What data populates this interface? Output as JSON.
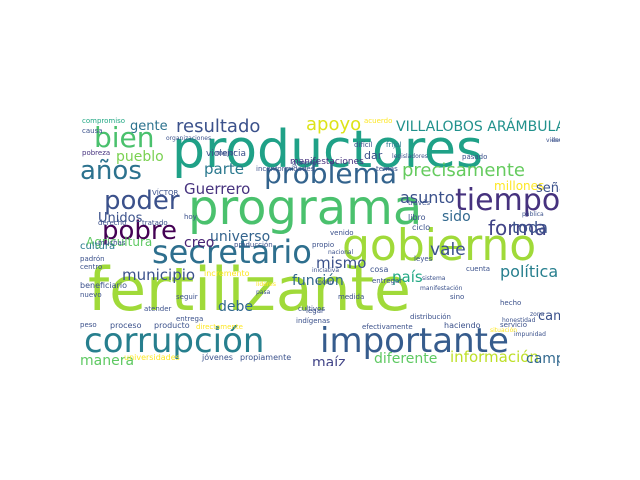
{
  "words": [
    {
      "id": "w1",
      "text": "fertilizante",
      "color": "#a0da39"
    },
    {
      "id": "w2",
      "text": "productores",
      "color": "#1fa187"
    },
    {
      "id": "w3",
      "text": "programa",
      "color": "#4ac16d"
    },
    {
      "id": "w4",
      "text": "gobierno",
      "color": "#a0da39"
    },
    {
      "id": "w5",
      "text": "corrupción",
      "color": "#277f8e"
    },
    {
      "id": "w6",
      "text": "importante",
      "color": "#365c8d"
    },
    {
      "id": "w7",
      "text": "secretario",
      "color": "#2e6f8e"
    },
    {
      "id": "w8",
      "text": "problema",
      "color": "#33638d"
    },
    {
      "id": "w9",
      "text": "tiempo",
      "color": "#46327e"
    },
    {
      "id": "w10",
      "text": "pobre",
      "color": "#440154"
    },
    {
      "id": "w11",
      "text": "poder",
      "color": "#3b518b"
    },
    {
      "id": "w12",
      "text": "años",
      "color": "#2c728e"
    },
    {
      "id": "w13",
      "text": "bien",
      "color": "#4ac16d"
    },
    {
      "id": "w14",
      "text": "precisamente",
      "color": "#65cb5e"
    },
    {
      "id": "w15",
      "text": "resultado",
      "color": "#3b518b"
    },
    {
      "id": "w16",
      "text": "VILLALOBOS ARÁMBULA",
      "color": "#21918c"
    },
    {
      "id": "w17",
      "text": "apoyo",
      "color": "#dde318"
    },
    {
      "id": "w18",
      "text": "forma",
      "color": "#414487"
    },
    {
      "id": "w19",
      "text": "municipio",
      "color": "#3b518b"
    },
    {
      "id": "w20",
      "text": "mismo",
      "color": "#3b518b"
    },
    {
      "id": "w21",
      "text": "universo",
      "color": "#33638d"
    },
    {
      "id": "w22",
      "text": "información",
      "color": "#bddf26"
    },
    {
      "id": "w23",
      "text": "diferente",
      "color": "#5ec962"
    },
    {
      "id": "w24",
      "text": "campesinos",
      "color": "#31688e"
    },
    {
      "id": "w25",
      "text": "política",
      "color": "#277f8e"
    },
    {
      "id": "w26",
      "text": "vale",
      "color": "#3b518b"
    },
    {
      "id": "w27",
      "text": "país",
      "color": "#22a884"
    },
    {
      "id": "w28",
      "text": "asunto",
      "color": "#3b518b"
    },
    {
      "id": "w29",
      "text": "toda",
      "color": "#3b518b"
    },
    {
      "id": "w30",
      "text": "sido",
      "color": "#31688e"
    },
    {
      "id": "w31",
      "text": "Guerrero",
      "color": "#46327e"
    },
    {
      "id": "w32",
      "text": "parte",
      "color": "#2a788e"
    },
    {
      "id": "w33",
      "text": "gente",
      "color": "#2c728e"
    },
    {
      "id": "w34",
      "text": "pueblo",
      "color": "#7ad151"
    },
    {
      "id": "w35",
      "text": "Unidos",
      "color": "#3b518b"
    },
    {
      "id": "w36",
      "text": "creo",
      "color": "#482475"
    },
    {
      "id": "w37",
      "text": "función",
      "color": "#31688e"
    },
    {
      "id": "w38",
      "text": "debe",
      "color": "#31688e"
    },
    {
      "id": "w39",
      "text": "maíz",
      "color": "#414487"
    },
    {
      "id": "w40",
      "text": "manera",
      "color": "#5ec962"
    },
    {
      "id": "w41",
      "text": "millones",
      "color": "#fde725"
    },
    {
      "id": "w42",
      "text": "señalado",
      "color": "#3b518b"
    },
    {
      "id": "w43",
      "text": "cambio",
      "color": "#3b518b"
    },
    {
      "id": "w44",
      "text": "Agricultura",
      "color": "#5ec962"
    },
    {
      "id": "w45",
      "text": "cultura",
      "color": "#2a788e"
    },
    {
      "id": "w46",
      "text": "dar",
      "color": "#3b518b"
    },
    {
      "id": "w47",
      "text": "violencia",
      "color": "#3b518b"
    },
    {
      "id": "w48",
      "text": "inconformidades",
      "color": "#3b518b"
    },
    {
      "id": "w49",
      "text": "manifestaciones",
      "color": "#46327e"
    },
    {
      "id": "w50",
      "text": "general",
      "color": "#3b528b"
    },
    {
      "id": "w51",
      "text": "temas",
      "color": "#3b518b"
    },
    {
      "id": "w52",
      "text": "legisladores",
      "color": "#3b518b"
    },
    {
      "id": "w53",
      "text": "frijol",
      "color": "#2a788e"
    },
    {
      "id": "w54",
      "text": "acuerdo",
      "color": "#fde725"
    },
    {
      "id": "w55",
      "text": "difícil",
      "color": "#3b518b"
    },
    {
      "id": "w56",
      "text": "compromiso",
      "color": "#22a884"
    },
    {
      "id": "w57",
      "text": "causa",
      "color": "#3b518b"
    },
    {
      "id": "w58",
      "text": "pobreza",
      "color": "#46327e"
    },
    {
      "id": "w59",
      "text": "mejor",
      "color": "#3b518b"
    },
    {
      "id": "w60",
      "text": "pasado",
      "color": "#3b518b"
    },
    {
      "id": "w61",
      "text": "vienen",
      "color": "#3b518b"
    },
    {
      "id": "w62",
      "text": "llevar",
      "color": "#3b518b"
    },
    {
      "id": "w63",
      "text": "VÍCTOR",
      "color": "#3b518b"
    },
    {
      "id": "w64",
      "text": "derecho",
      "color": "#3b518b"
    },
    {
      "id": "w65",
      "text": "tratado",
      "color": "#3b518b"
    },
    {
      "id": "w66",
      "text": "hoy",
      "color": "#3b518b"
    },
    {
      "id": "w67",
      "text": "muchas",
      "color": "#3b518b"
    },
    {
      "id": "w68",
      "text": "producción",
      "color": "#3b518b"
    },
    {
      "id": "w69",
      "text": "propio",
      "color": "#3b518b"
    },
    {
      "id": "w70",
      "text": "venido",
      "color": "#3b518b"
    },
    {
      "id": "w71",
      "text": "ciclo",
      "color": "#3b518b"
    },
    {
      "id": "w72",
      "text": "través",
      "color": "#3b518b"
    },
    {
      "id": "w73",
      "text": "libro",
      "color": "#3b518b"
    },
    {
      "id": "w74",
      "text": "pública",
      "color": "#3b518b"
    },
    {
      "id": "w75",
      "text": "padrón",
      "color": "#3b518b"
    },
    {
      "id": "w76",
      "text": "centro",
      "color": "#3b518b"
    },
    {
      "id": "w77",
      "text": "beneficiario",
      "color": "#3b518b"
    },
    {
      "id": "w78",
      "text": "incremento",
      "color": "#fde725"
    },
    {
      "id": "w79",
      "text": "cosa",
      "color": "#3b518b"
    },
    {
      "id": "w80",
      "text": "cuenta",
      "color": "#3b518b"
    },
    {
      "id": "w81",
      "text": "seguir",
      "color": "#3b518b"
    },
    {
      "id": "w82",
      "text": "líderes",
      "color": "#fde725"
    },
    {
      "id": "w83",
      "text": "entregar",
      "color": "#3b518b"
    },
    {
      "id": "w84",
      "text": "medida",
      "color": "#3b518b"
    },
    {
      "id": "w85",
      "text": "sino",
      "color": "#3b518b"
    },
    {
      "id": "w86",
      "text": "hecho",
      "color": "#3b518b"
    },
    {
      "id": "w87",
      "text": "nuevo",
      "color": "#3b518b"
    },
    {
      "id": "w88",
      "text": "atender",
      "color": "#3b518b"
    },
    {
      "id": "w89",
      "text": "entrega",
      "color": "#3b518b"
    },
    {
      "id": "w90",
      "text": "legar",
      "color": "#3b518b"
    },
    {
      "id": "w91",
      "text": "indígenas",
      "color": "#3b518b"
    },
    {
      "id": "w92",
      "text": "leyes",
      "color": "#3b518b"
    },
    {
      "id": "w93",
      "text": "distribución",
      "color": "#3b518b"
    },
    {
      "id": "w94",
      "text": "cultivos",
      "color": "#3b518b"
    },
    {
      "id": "w95",
      "text": "honestidad",
      "color": "#3b518b"
    },
    {
      "id": "w96",
      "text": "zona",
      "color": "#3b518b"
    },
    {
      "id": "w97",
      "text": "impunidad",
      "color": "#3b518b"
    },
    {
      "id": "w98",
      "text": "situación",
      "color": "#fde725"
    },
    {
      "id": "w99",
      "text": "peso",
      "color": "#3b518b"
    },
    {
      "id": "w100",
      "text": "proceso",
      "color": "#3b518b"
    },
    {
      "id": "w101",
      "text": "producto",
      "color": "#3b518b"
    },
    {
      "id": "w102",
      "text": "directamente",
      "color": "#fde725"
    },
    {
      "id": "w103",
      "text": "efectivamente",
      "color": "#3b518b"
    },
    {
      "id": "w104",
      "text": "haciendo",
      "color": "#3b518b"
    },
    {
      "id": "w105",
      "text": "servicio",
      "color": "#3b518b"
    },
    {
      "id": "w106",
      "text": "universidades",
      "color": "#fde725"
    },
    {
      "id": "w107",
      "text": "jóvenes",
      "color": "#3b518b"
    },
    {
      "id": "w108",
      "text": "propiamente",
      "color": "#3b518b"
    },
    {
      "id": "w109",
      "text": "nacional",
      "color": "#3b518b"
    },
    {
      "id": "w110",
      "text": "organizaciones",
      "color": "#3b518b"
    },
    {
      "id": "w111",
      "text": "iniciativa",
      "color": "#3b518b"
    },
    {
      "id": "w112",
      "text": "modo",
      "color": "#3b518b"
    },
    {
      "id": "w113",
      "text": "pasa",
      "color": "#3b518b"
    },
    {
      "id": "w114",
      "text": "sistema",
      "color": "#3b518b"
    },
    {
      "id": "w115",
      "text": "manifestación",
      "color": "#3b518b"
    }
  ]
}
